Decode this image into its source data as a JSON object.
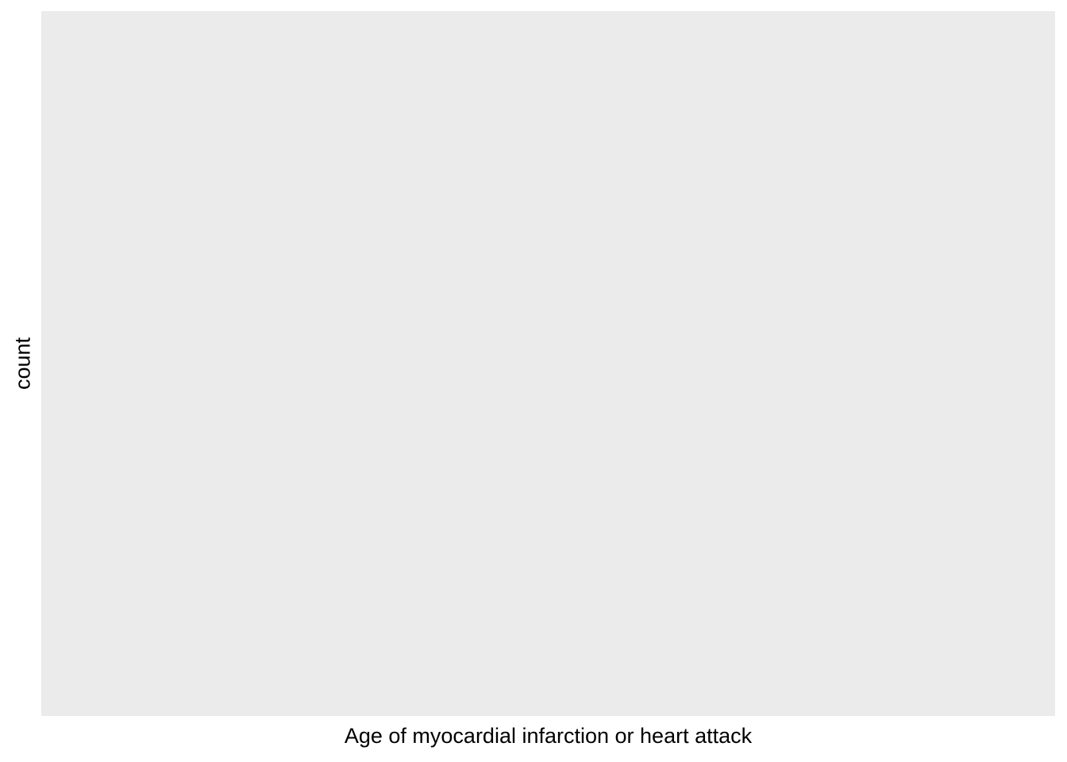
{
  "chart_data": {
    "type": "bar",
    "title": "",
    "xlabel": "Age of myocardial infarction or heart attack",
    "ylabel": "count",
    "categories": [],
    "values": [],
    "grid": false,
    "legend": "none",
    "panel_background": "#EBEBEB",
    "figure_background": "#FFFFFF",
    "text_color": "#000000"
  }
}
